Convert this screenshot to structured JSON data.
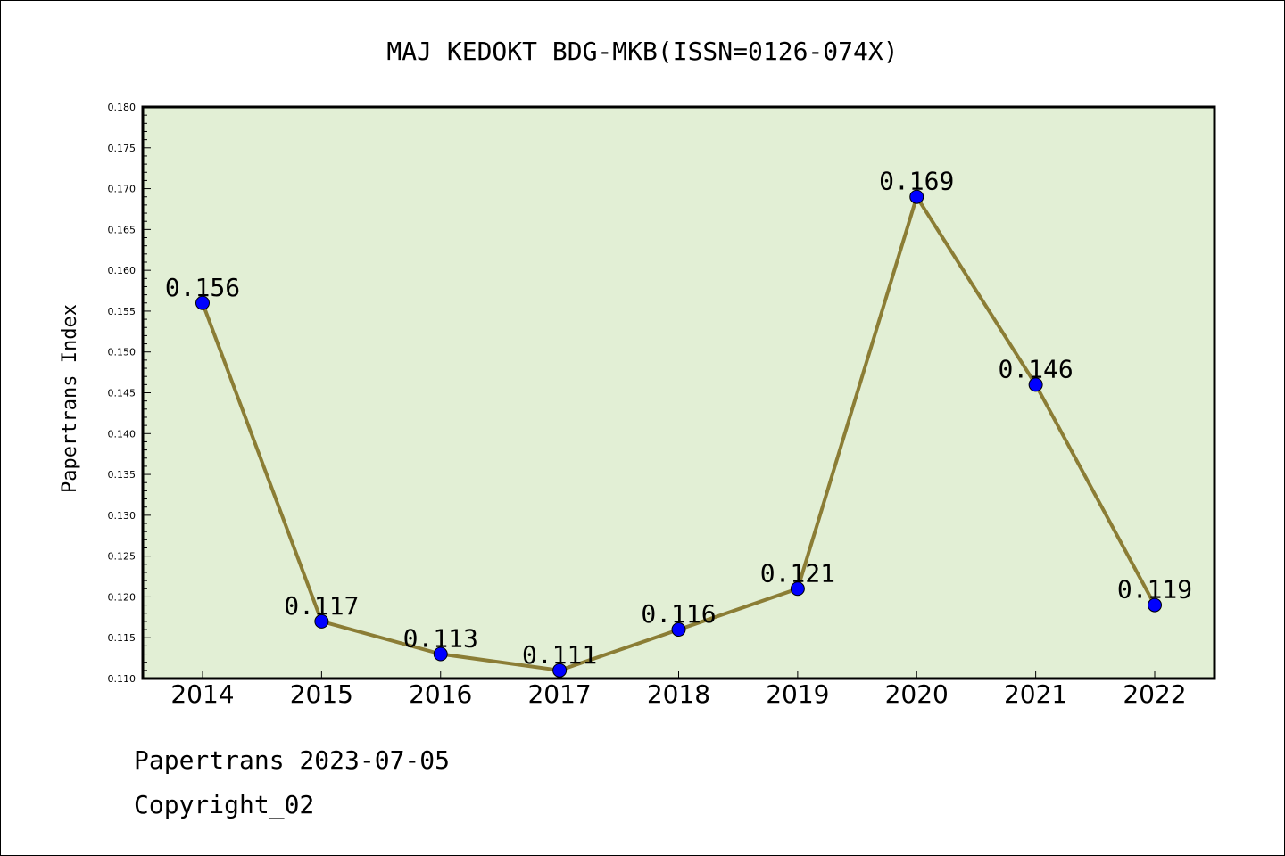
{
  "chart_data": {
    "type": "line",
    "title": "MAJ KEDOKT BDG-MKB(ISSN=0126-074X)",
    "xlabel": "",
    "ylabel": "Papertrans Index",
    "categories": [
      "2014",
      "2015",
      "2016",
      "2017",
      "2018",
      "2019",
      "2020",
      "2021",
      "2022"
    ],
    "series": [
      {
        "values": [
          0.156,
          0.117,
          0.113,
          0.111,
          0.116,
          0.121,
          0.169,
          0.146,
          0.119
        ],
        "labels": [
          "0.156",
          "0.117",
          "0.113",
          "0.111",
          "0.116",
          "0.121",
          "0.169",
          "0.146",
          "0.119"
        ]
      }
    ],
    "ylim": [
      0.11,
      0.18
    ],
    "yticks": [
      "0.110",
      "0.115",
      "0.120",
      "0.125",
      "0.130",
      "0.135",
      "0.140",
      "0.145",
      "0.150",
      "0.155",
      "0.160",
      "0.165",
      "0.170",
      "0.175",
      "0.180"
    ],
    "grid": false,
    "colors": {
      "plot_background": "#e2efd5",
      "line": "#8b7d35",
      "marker": "#0000ff"
    }
  },
  "footer": {
    "line1": "Papertrans 2023-07-05",
    "line2": "Copyright_02"
  }
}
